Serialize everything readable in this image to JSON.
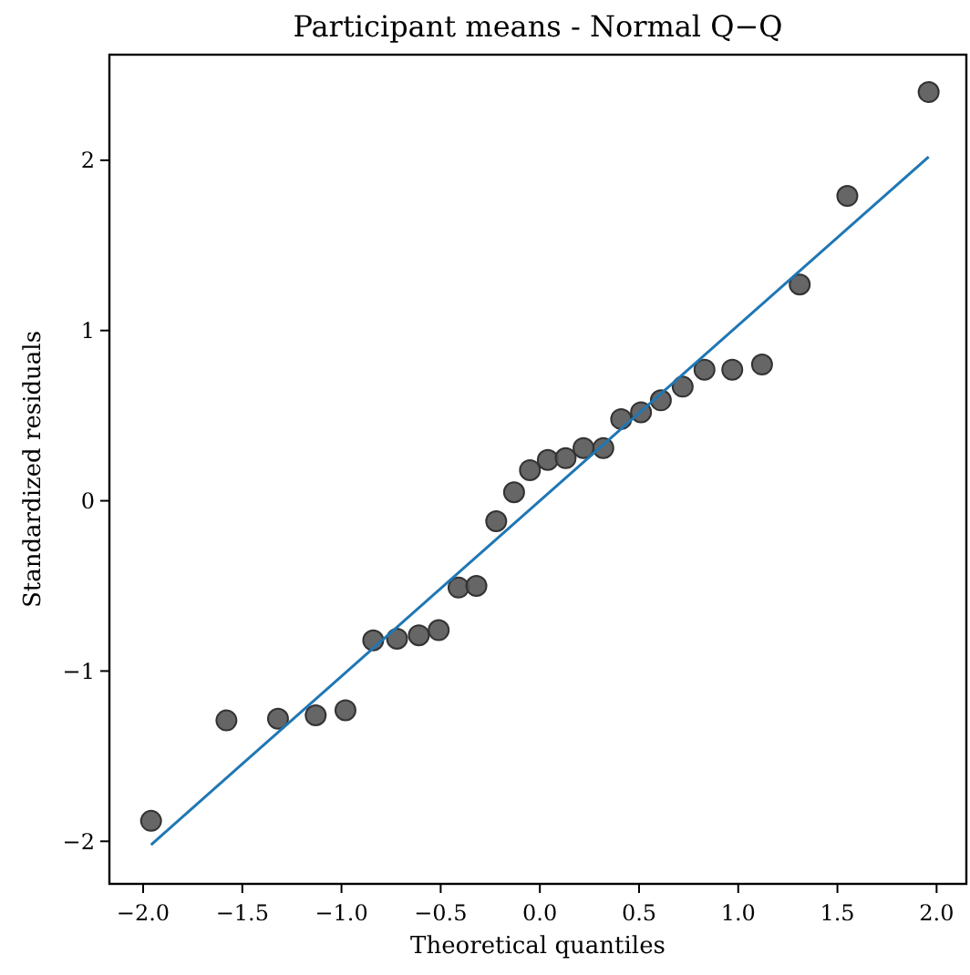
{
  "chart_data": {
    "type": "scatter",
    "title": "Participant means - Normal Q−Q",
    "xlabel": "Theoretical quantiles",
    "ylabel": "Standardized residuals",
    "xlim": [
      -2.17,
      2.15
    ],
    "ylim": [
      -2.25,
      2.62
    ],
    "xticks": [
      {
        "value": -2,
        "label": "−2.0"
      },
      {
        "value": -1.5,
        "label": "−1.5"
      },
      {
        "value": -1,
        "label": "−1.0"
      },
      {
        "value": -0.5,
        "label": "−0.5"
      },
      {
        "value": 0,
        "label": "0.0"
      },
      {
        "value": 0.5,
        "label": "0.5"
      },
      {
        "value": 1,
        "label": "1.0"
      },
      {
        "value": 1.5,
        "label": "1.5"
      },
      {
        "value": 2,
        "label": "2.0"
      }
    ],
    "yticks": [
      {
        "value": -2,
        "label": "−2"
      },
      {
        "value": -1,
        "label": "−1"
      },
      0,
      1,
      2
    ],
    "grid": false,
    "series": [
      {
        "marker": "circle",
        "color": "#555555",
        "x": [
          -1.96,
          -1.58,
          -1.32,
          -1.13,
          -0.98,
          -0.84,
          -0.72,
          -0.61,
          -0.51,
          -0.41,
          -0.32,
          -0.22,
          -0.13,
          -0.05,
          0.04,
          0.13,
          0.22,
          0.32,
          0.41,
          0.51,
          0.61,
          0.72,
          0.83,
          0.97,
          1.12,
          1.31,
          1.55,
          1.96
        ],
        "values": [
          -1.88,
          -1.29,
          -1.28,
          -1.26,
          -1.23,
          -0.82,
          -0.81,
          -0.79,
          -0.76,
          -0.51,
          -0.5,
          -0.12,
          0.05,
          0.18,
          0.24,
          0.25,
          0.31,
          0.31,
          0.48,
          0.52,
          0.59,
          0.67,
          0.77,
          0.77,
          0.8,
          1.27,
          1.79,
          2.4
        ]
      },
      {
        "type": "line",
        "color": "#1f77b4",
        "x": [
          -1.96,
          1.96
        ],
        "values": [
          -2.02,
          2.02
        ],
        "line_style": "solid",
        "marker": "none"
      }
    ]
  }
}
